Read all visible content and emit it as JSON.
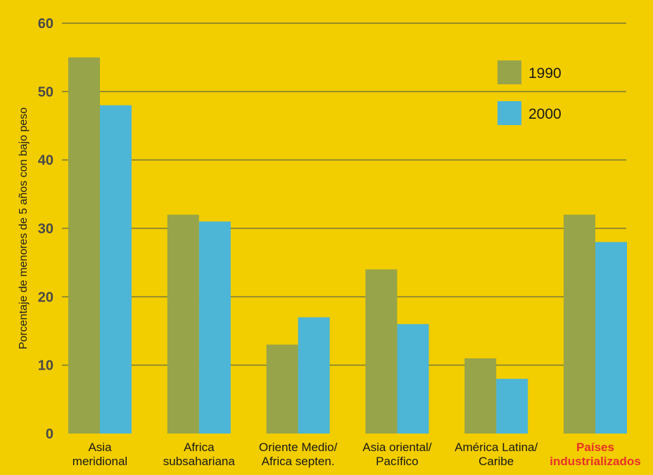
{
  "colors": {
    "background": "#F2CD00",
    "gridline": "#7A7A38",
    "axis_text": "#4A4A4A",
    "series_1990": "#97A449",
    "series_2000": "#4DB5D6",
    "highlight_label": "#E8312A"
  },
  "chart_data": {
    "type": "bar",
    "title": "",
    "xlabel": "",
    "ylabel": "Porcentaje de menores de 5 años con bajo peso",
    "ylim": [
      0,
      60
    ],
    "yticks": [
      "0",
      "10",
      "20",
      "30",
      "40",
      "50",
      "60"
    ],
    "grid": true,
    "legend_position": "top-right",
    "categories": [
      [
        "Asia",
        "meridional"
      ],
      [
        "Africa",
        "subsahariana"
      ],
      [
        "Oriente Medio/",
        "Africa septen."
      ],
      [
        "Asia oriental/",
        "Pacífico"
      ],
      [
        "América Latina/",
        "Caribe"
      ],
      [
        "Países",
        "industrializados"
      ]
    ],
    "highlighted_category_index": 5,
    "series": [
      {
        "name": "1990",
        "values": [
          55,
          32,
          13,
          24,
          11,
          32
        ]
      },
      {
        "name": "2000",
        "values": [
          48,
          31,
          17,
          16,
          8,
          28
        ]
      }
    ]
  }
}
